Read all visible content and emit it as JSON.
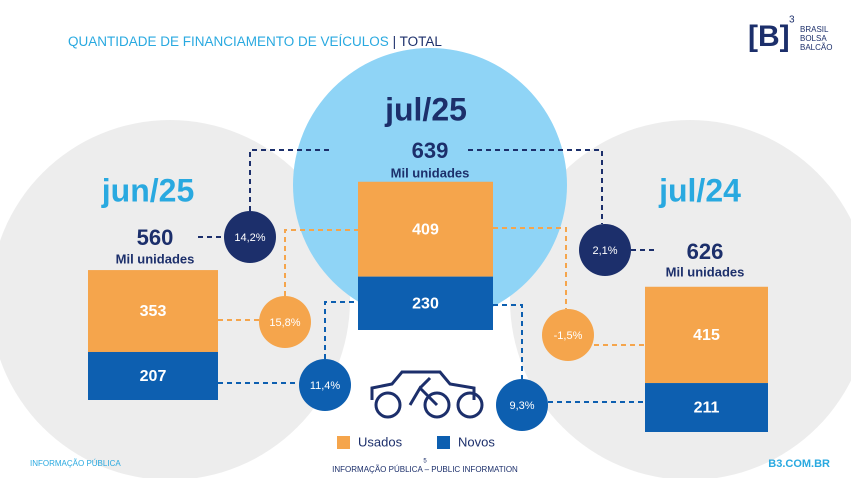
{
  "header": {
    "title": "QUANTIDADE DE FINANCIAMENTO DE VEÍCULOS",
    "title_suffix": "| TOTAL",
    "logo": {
      "mark": "[B]",
      "superscript": "3",
      "lines": [
        "BRASIL",
        "BOLSA",
        "BALCÃO"
      ]
    }
  },
  "periods": [
    {
      "label": "jun/25",
      "total": 560,
      "unit": "Mil unidades",
      "usados": 353,
      "novos": 207
    },
    {
      "label": "jul/25",
      "total": 639,
      "unit": "Mil unidades",
      "usados": 409,
      "novos": 230
    },
    {
      "label": "jul/24",
      "total": 626,
      "unit": "Mil unidades",
      "usados": 415,
      "novos": 211
    }
  ],
  "changes": {
    "total_jun25": "14,2%",
    "usados_jun25": "15,8%",
    "novos_jun25": "11,4%",
    "total_jul24": "2,1%",
    "usados_jul24": "-1,5%",
    "novos_jul24": "9,3%"
  },
  "legend": [
    "Usados",
    "Novos"
  ],
  "footer": {
    "left": "INFORMAÇÃO PÚBLICA",
    "page": "5",
    "center": "INFORMAÇÃO PÚBLICA – PUBLIC INFORMATION",
    "right": "B3.COM.BR"
  }
}
